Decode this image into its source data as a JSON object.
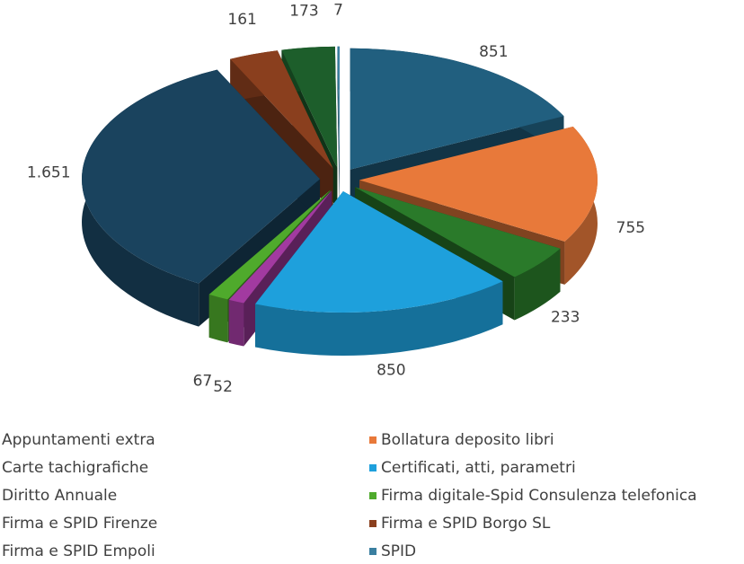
{
  "chart_data": {
    "type": "pie3d",
    "categories": [
      "Appuntamenti extra",
      "Bollatura deposito libri",
      "Carte tachigrafiche",
      "Certificati, atti, parametri",
      "Diritto Annuale",
      "Firma digitale-Spid Consulenza telefonica",
      "Firma e SPID Firenze",
      "Firma e SPID Borgo SL",
      "Firma e SPID Empoli",
      "SPID"
    ],
    "values": [
      851,
      755,
      233,
      850,
      52,
      67,
      1651,
      161,
      173,
      7
    ],
    "value_labels": [
      "851",
      "755",
      "233",
      "850",
      "52",
      "67",
      "1.651",
      "161",
      "173",
      "7"
    ],
    "colors": [
      "#215f7f",
      "#e8793a",
      "#2a7a2a",
      "#1ea0dc",
      "#a23aa0",
      "#4faa2c",
      "#1a435e",
      "#8a3f1e",
      "#1d5e2b",
      "#3a7fa0"
    ],
    "legend": "bottom"
  }
}
